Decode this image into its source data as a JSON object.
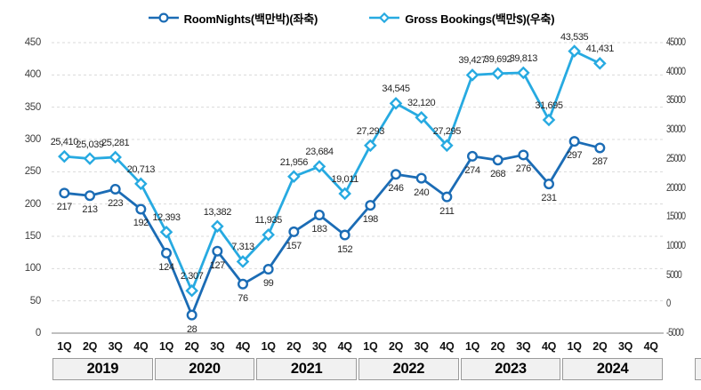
{
  "chart": {
    "legend": {
      "items": [
        {
          "label": "RoomNights(백만박)(좌축)",
          "marker": "circle",
          "color": "#1B6CB5"
        },
        {
          "label": "Gross Bookings(백만$)(우축)",
          "marker": "diamond",
          "color": "#27AAE1"
        }
      ]
    }
  },
  "chart_data": {
    "type": "line",
    "title": "",
    "legend_position": "top",
    "grid": true,
    "categories": [
      "1Q",
      "2Q",
      "3Q",
      "4Q",
      "1Q",
      "2Q",
      "3Q",
      "4Q",
      "1Q",
      "2Q",
      "3Q",
      "4Q",
      "1Q",
      "2Q",
      "3Q",
      "4Q",
      "1Q",
      "2Q",
      "3Q",
      "4Q",
      "1Q",
      "2Q",
      "3Q",
      "4Q"
    ],
    "year_groups": [
      {
        "label": "2019"
      },
      {
        "label": "2020"
      },
      {
        "label": "2021"
      },
      {
        "label": "2022"
      },
      {
        "label": "2023"
      },
      {
        "label": "2024"
      }
    ],
    "series": [
      {
        "name": "RoomNights(백만박)(좌축)",
        "axis": "left",
        "marker": "circle",
        "color": "#1B6CB5",
        "values": [
          217,
          213,
          223,
          192,
          124,
          28,
          127,
          76,
          99,
          157,
          183,
          152,
          198,
          246,
          240,
          211,
          274,
          268,
          276,
          231,
          297,
          287,
          null,
          null
        ],
        "labels": [
          "217",
          "213",
          "223",
          "192",
          "124",
          "28",
          "127",
          "76",
          "99",
          "157",
          "183",
          "152",
          "198",
          "246",
          "240",
          "211",
          "274",
          "268",
          "276",
          "231",
          "297",
          "287",
          "",
          ""
        ]
      },
      {
        "name": "Gross Bookings(백만$)(우축)",
        "axis": "right",
        "marker": "diamond",
        "color": "#27AAE1",
        "values": [
          25410,
          25039,
          25281,
          20713,
          12393,
          2307,
          13382,
          7313,
          11935,
          21956,
          23684,
          19011,
          27293,
          34545,
          32120,
          27295,
          39427,
          39692,
          39813,
          31695,
          43535,
          41431,
          null,
          null
        ],
        "labels": [
          "25,410",
          "25,039",
          "25,281",
          "20,713",
          "12,393",
          "2,307",
          "13,382",
          "7,313",
          "11,935",
          "21,956",
          "23,684",
          "19,011",
          "27,293",
          "34,545",
          "32,120",
          "27,295",
          "39,427",
          "39,692",
          "39,813",
          "31,695",
          "43,535",
          "41,431",
          "",
          ""
        ]
      }
    ],
    "left_axis": {
      "min": 0,
      "max": 450,
      "step": 50,
      "labels": [
        "0",
        "50",
        "100",
        "150",
        "200",
        "250",
        "300",
        "350",
        "400",
        "450"
      ]
    },
    "right_axis": {
      "min": -5000,
      "max": 45000,
      "step": 5000,
      "labels": [
        "-5000",
        "0",
        "5000",
        "10000",
        "15000",
        "20000",
        "25000",
        "30000",
        "35000",
        "40000",
        "45000"
      ]
    },
    "colors": {
      "gridline": "#d9d9d9",
      "axis_line": "#9a9a9a",
      "tick_text": "#3f3f3f",
      "label_text": "#262626"
    }
  }
}
